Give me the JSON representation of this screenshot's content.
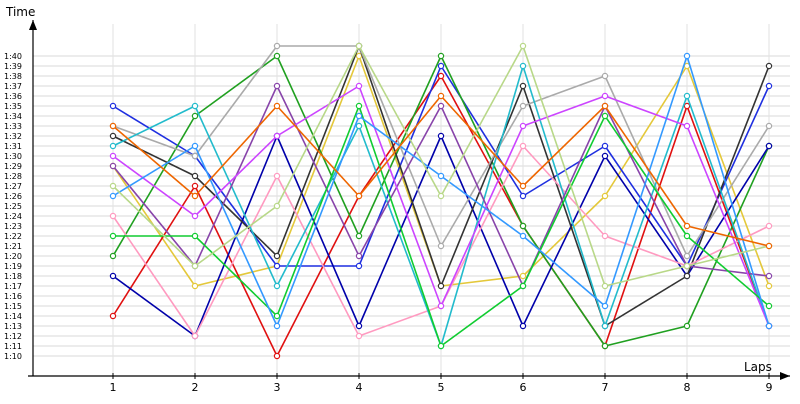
{
  "chart_data": {
    "type": "line",
    "title": "",
    "xlabel": "Laps",
    "ylabel": "Time",
    "categories": [
      "1",
      "2",
      "3",
      "4",
      "5",
      "6",
      "7",
      "8",
      "9"
    ],
    "y_tick_labels": [
      "1:10",
      "1:11",
      "1:12",
      "1:13",
      "1:14",
      "1:15",
      "1:16",
      "1:17",
      "1:18",
      "1:19",
      "1:20",
      "1:21",
      "1:22",
      "1:23",
      "1:24",
      "1:25",
      "1:26",
      "1:27",
      "1:28",
      "1:29",
      "1:30",
      "1:31",
      "1:32",
      "1:33",
      "1:34",
      "1:35",
      "1:36",
      "1:37",
      "1:38",
      "1:39",
      "1:40"
    ],
    "ylim_seconds": [
      70,
      100
    ],
    "grid": true,
    "series": [
      {
        "color": "#e4c83a",
        "values": [
          89,
          77,
          79,
          100,
          77,
          78,
          86,
          99,
          77
        ]
      },
      {
        "color": "#e01010",
        "values": [
          74,
          87,
          70,
          86,
          98,
          83,
          71,
          95,
          73
        ]
      },
      {
        "color": "#1f2fe0",
        "values": [
          95,
          90,
          79,
          79,
          99,
          86,
          91,
          79,
          97
        ]
      },
      {
        "color": "#20a020",
        "values": [
          80,
          94,
          100,
          82,
          100,
          83,
          71,
          73,
          91
        ]
      },
      {
        "color": "#0000aa",
        "values": [
          78,
          72,
          92,
          73,
          92,
          73,
          90,
          78,
          91
        ]
      },
      {
        "color": "#333333",
        "values": [
          92,
          88,
          80,
          101,
          77,
          97,
          73,
          78,
          99
        ]
      },
      {
        "color": "#ff9ac0",
        "values": [
          84,
          72,
          88,
          72,
          75,
          91,
          82,
          79,
          83
        ]
      },
      {
        "color": "#aaaaaa",
        "values": [
          93,
          90,
          101,
          101,
          81,
          95,
          98,
          80,
          93
        ]
      },
      {
        "color": "#22bbcc",
        "values": [
          91,
          95,
          77,
          93,
          71,
          99,
          73,
          96,
          73
        ]
      },
      {
        "color": "#8844aa",
        "values": [
          89,
          79,
          97,
          80,
          95,
          77,
          95,
          79,
          78
        ]
      },
      {
        "color": "#cc44ff",
        "values": [
          90,
          84,
          92,
          97,
          75,
          93,
          96,
          93,
          73
        ]
      },
      {
        "color": "#10cc30",
        "values": [
          82,
          82,
          74,
          95,
          71,
          77,
          94,
          82,
          75
        ]
      },
      {
        "color": "#3399ff",
        "values": [
          86,
          91,
          73,
          94,
          88,
          82,
          75,
          100,
          73
        ]
      },
      {
        "color": "#b8d888",
        "values": [
          87,
          79,
          85,
          101,
          86,
          101,
          77,
          79,
          81
        ]
      },
      {
        "color": "#ee6600",
        "values": [
          93,
          86,
          95,
          86,
          96,
          87,
          95,
          83,
          81
        ]
      }
    ]
  }
}
